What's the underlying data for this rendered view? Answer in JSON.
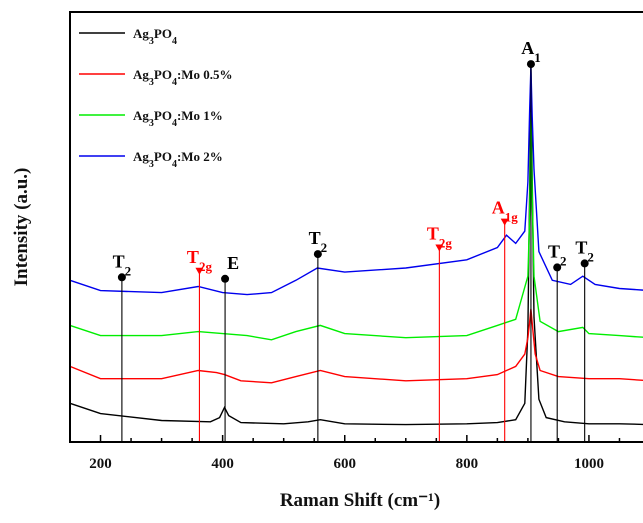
{
  "chart_data": {
    "type": "line",
    "title": "",
    "xlabel": "Raman Shift (cm⁻¹)",
    "ylabel": "Intensity (a.u.)",
    "xlim": [
      150,
      1100
    ],
    "ylim": [
      0,
      100
    ],
    "xticks": [
      "200",
      "400",
      "600",
      "800",
      "1000"
    ],
    "grid": false,
    "legend_position": "top-left",
    "series": [
      {
        "name": "Ag₃PO₄",
        "color": "#000000",
        "offset": 0,
        "points": [
          [
            150,
            7
          ],
          [
            200,
            4.5
          ],
          [
            300,
            2.8
          ],
          [
            380,
            2.5
          ],
          [
            395,
            3.5
          ],
          [
            403,
            6
          ],
          [
            410,
            4
          ],
          [
            430,
            2.3
          ],
          [
            500,
            2
          ],
          [
            540,
            2.5
          ],
          [
            560,
            3
          ],
          [
            600,
            2
          ],
          [
            700,
            1.8
          ],
          [
            800,
            2
          ],
          [
            850,
            2.3
          ],
          [
            880,
            3
          ],
          [
            895,
            7
          ],
          [
            900,
            25
          ],
          [
            903,
            60
          ],
          [
            905,
            90
          ],
          [
            907,
            62
          ],
          [
            910,
            28
          ],
          [
            918,
            8
          ],
          [
            930,
            3.5
          ],
          [
            960,
            2.5
          ],
          [
            1000,
            2
          ],
          [
            1050,
            2
          ],
          [
            1100,
            1.8
          ]
        ]
      },
      {
        "name": "Ag₃PO₄:Mo 0.5%",
        "color": "#ff0000",
        "offset": 9,
        "points": [
          [
            150,
            7
          ],
          [
            200,
            4
          ],
          [
            300,
            4
          ],
          [
            360,
            6
          ],
          [
            390,
            5.5
          ],
          [
            403,
            5
          ],
          [
            430,
            3.5
          ],
          [
            480,
            3
          ],
          [
            520,
            4.5
          ],
          [
            560,
            6
          ],
          [
            600,
            4.5
          ],
          [
            700,
            3.5
          ],
          [
            800,
            4
          ],
          [
            850,
            5
          ],
          [
            880,
            7
          ],
          [
            895,
            10
          ],
          [
            900,
            14
          ],
          [
            903,
            18
          ],
          [
            905,
            21
          ],
          [
            908,
            16
          ],
          [
            912,
            10
          ],
          [
            920,
            6
          ],
          [
            950,
            4.5
          ],
          [
            1000,
            4
          ],
          [
            1050,
            4
          ],
          [
            1100,
            3.5
          ]
        ]
      },
      {
        "name": "Ag₃PO₄:Mo 1%",
        "color": "#00ee00",
        "offset": 18,
        "points": [
          [
            150,
            8
          ],
          [
            200,
            5.5
          ],
          [
            300,
            5.5
          ],
          [
            360,
            6.5
          ],
          [
            400,
            6
          ],
          [
            440,
            5.5
          ],
          [
            480,
            4.5
          ],
          [
            520,
            6.5
          ],
          [
            560,
            8
          ],
          [
            600,
            6
          ],
          [
            700,
            5
          ],
          [
            800,
            5.5
          ],
          [
            850,
            8
          ],
          [
            880,
            9.5
          ],
          [
            900,
            20
          ],
          [
            903,
            35
          ],
          [
            905,
            60
          ],
          [
            907,
            40
          ],
          [
            910,
            20
          ],
          [
            920,
            9
          ],
          [
            950,
            6.5
          ],
          [
            990,
            7.5
          ],
          [
            1000,
            6
          ],
          [
            1050,
            5.5
          ],
          [
            1100,
            5
          ]
        ]
      },
      {
        "name": "Ag₃PO₄:Mo 2%",
        "color": "#0000ee",
        "offset": 29,
        "points": [
          [
            150,
            8
          ],
          [
            200,
            5.5
          ],
          [
            300,
            5
          ],
          [
            360,
            6.5
          ],
          [
            400,
            5
          ],
          [
            440,
            4.5
          ],
          [
            480,
            5
          ],
          [
            520,
            8
          ],
          [
            555,
            11
          ],
          [
            600,
            10
          ],
          [
            700,
            11
          ],
          [
            800,
            13
          ],
          [
            850,
            16
          ],
          [
            865,
            19
          ],
          [
            880,
            17
          ],
          [
            895,
            20
          ],
          [
            900,
            32
          ],
          [
            903,
            50
          ],
          [
            905,
            60
          ],
          [
            907,
            48
          ],
          [
            910,
            35
          ],
          [
            918,
            15
          ],
          [
            940,
            8
          ],
          [
            970,
            7
          ],
          [
            990,
            9
          ],
          [
            1010,
            7
          ],
          [
            1050,
            6
          ],
          [
            1100,
            5.5
          ]
        ]
      }
    ],
    "annotations": [
      {
        "label": "T2",
        "main": "T",
        "sub": "2",
        "x": 235,
        "color": "#000000",
        "marker": "circle"
      },
      {
        "label": "T2g",
        "main": "T",
        "sub": "2g",
        "x": 362,
        "color": "#ff0000",
        "marker": "triangle"
      },
      {
        "label": "E",
        "main": "E",
        "sub": "",
        "x": 404,
        "color": "#000000",
        "marker": "circle"
      },
      {
        "label": "T2",
        "main": "T",
        "sub": "2",
        "x": 556,
        "color": "#000000",
        "marker": "circle"
      },
      {
        "label": "T2g",
        "main": "T",
        "sub": "2g",
        "x": 755,
        "color": "#ff0000",
        "marker": "triangle"
      },
      {
        "label": "A1g",
        "main": "A",
        "sub": "1g",
        "x": 862,
        "color": "#ff0000",
        "marker": "triangle"
      },
      {
        "label": "A1",
        "main": "A",
        "sub": "1",
        "x": 905,
        "color": "#000000",
        "marker": "circle"
      },
      {
        "label": "T2",
        "main": "T",
        "sub": "2",
        "x": 948,
        "color": "#000000",
        "marker": "circle"
      },
      {
        "label": "T2",
        "main": "T",
        "sub": "2",
        "x": 993,
        "color": "#000000",
        "marker": "circle"
      }
    ]
  }
}
